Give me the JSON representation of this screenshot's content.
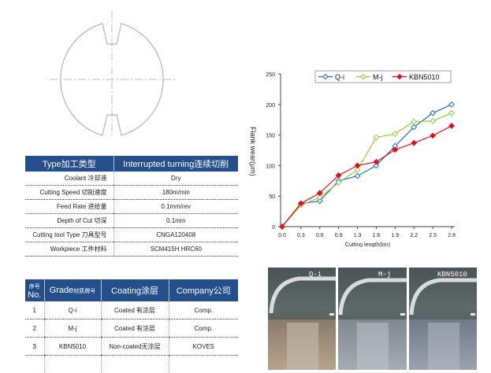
{
  "conditions_table": {
    "header": {
      "left": "Type加工类型",
      "right": "Interrupted turning连续切削"
    },
    "rows": [
      {
        "label": "Coolant  冷却液",
        "value": "Dry"
      },
      {
        "label": "Cutting Speed 切削速度",
        "value": "180m/min"
      },
      {
        "label": "Feed Rate 进给量",
        "value": "0.1mm/rev"
      },
      {
        "label": "Depth of Cut  切深",
        "value": "0.1mm"
      },
      {
        "label": "Cutting tool Type 刀具型号",
        "value": "CNGA120408"
      },
      {
        "label": "Workpiece 工件材料",
        "value": "SCM415H HRC60"
      }
    ]
  },
  "grade_table": {
    "headers": {
      "no_top": "序号",
      "no": "No.",
      "grade": "Grade",
      "grade_cn": "材质牌号",
      "coating": "Coating涂层",
      "company": "Company公司"
    },
    "rows": [
      {
        "no": "1",
        "grade": "Q-i",
        "coating": "Coated  有涂层",
        "company": "Comp."
      },
      {
        "no": "2",
        "grade": "M-j",
        "coating": "Coated  有涂层",
        "company": "Comp."
      },
      {
        "no": "3",
        "grade": "KBN5010",
        "coating": "Non-coated无涂层",
        "company": "KOVES"
      }
    ]
  },
  "chart_data": {
    "type": "line",
    "title": "",
    "xlabel": "Cutting length(km)",
    "ylabel": "Flank wear(μm)",
    "categories": [
      "0.0",
      "0.3",
      "0.6",
      "0.9",
      "1.3",
      "1.6",
      "1.9",
      "2.2",
      "2.5",
      "2.8"
    ],
    "ylim": [
      0,
      250
    ],
    "yticks": [
      0,
      50,
      100,
      150,
      200,
      250
    ],
    "grid": false,
    "legend": "top",
    "series": [
      {
        "name": "Q-i",
        "color": "#1f6fc5",
        "marker": "diamond-open",
        "values": [
          0,
          38,
          42,
          75,
          83,
          100,
          132,
          163,
          186,
          200
        ]
      },
      {
        "name": "M-j",
        "color": "#8fce3c",
        "marker": "diamond-open",
        "values": [
          0,
          35,
          48,
          72,
          93,
          146,
          152,
          172,
          173,
          186
        ]
      },
      {
        "name": "KBN5010",
        "color": "#e3101a",
        "marker": "diamond-filled",
        "values": [
          0,
          38,
          55,
          84,
          100,
          106,
          126,
          137,
          149,
          165
        ]
      }
    ]
  },
  "photos": {
    "labels": [
      "Q-i",
      "M-j",
      "KBN5010"
    ]
  }
}
